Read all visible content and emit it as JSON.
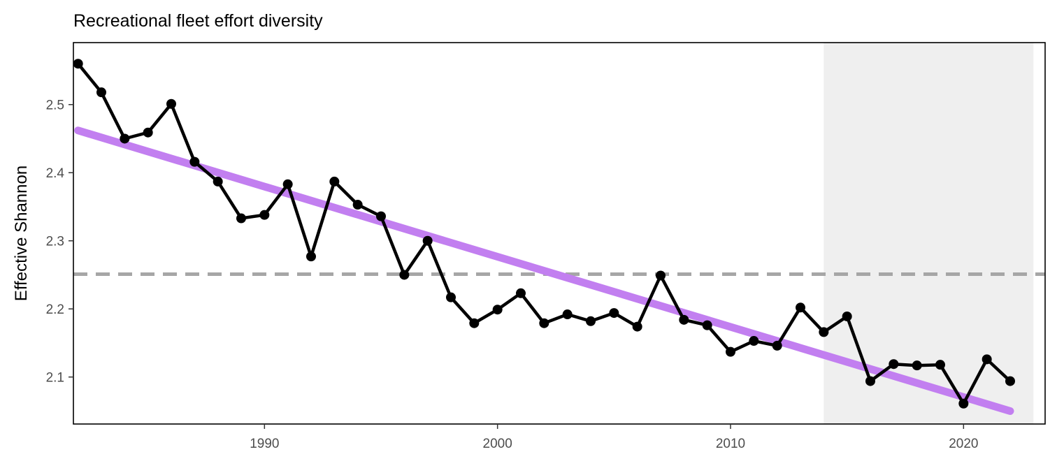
{
  "chart_data": {
    "type": "line",
    "title": "Recreational fleet effort diversity",
    "xlabel": "",
    "ylabel": "Effective Shannon",
    "xlim": [
      1981.8,
      2023.5
    ],
    "ylim": [
      2.031,
      2.591
    ],
    "x_ticks": [
      1990,
      2000,
      2010,
      2020
    ],
    "y_ticks": [
      2.1,
      2.2,
      2.3,
      2.4,
      2.5
    ],
    "grid": false,
    "legend": "none",
    "shaded_region": {
      "x_start": 2014,
      "x_end": 2023,
      "color": "#efefef"
    },
    "reference_line": {
      "y": 2.251,
      "style": "dashed",
      "color": "#a6a6a6"
    },
    "trend_line": {
      "x": [
        1982,
        2022
      ],
      "y": [
        2.462,
        2.05
      ],
      "color": "#c27ff0"
    },
    "series": [
      {
        "color": "#000000",
        "x": [
          1982,
          1983,
          1984,
          1985,
          1986,
          1987,
          1988,
          1989,
          1990,
          1991,
          1992,
          1993,
          1994,
          1995,
          1996,
          1997,
          1998,
          1999,
          2000,
          2001,
          2002,
          2003,
          2004,
          2005,
          2006,
          2007,
          2008,
          2009,
          2010,
          2011,
          2012,
          2013,
          2014,
          2015,
          2016,
          2017,
          2018,
          2019,
          2020,
          2021,
          2022
        ],
        "y": [
          2.56,
          2.518,
          2.45,
          2.459,
          2.501,
          2.416,
          2.387,
          2.333,
          2.338,
          2.383,
          2.277,
          2.387,
          2.353,
          2.336,
          2.25,
          2.3,
          2.217,
          2.179,
          2.199,
          2.223,
          2.179,
          2.192,
          2.182,
          2.194,
          2.174,
          2.249,
          2.184,
          2.176,
          2.137,
          2.153,
          2.146,
          2.202,
          2.166,
          2.189,
          2.094,
          2.119,
          2.117,
          2.118,
          2.061,
          2.126,
          2.094
        ]
      }
    ]
  }
}
